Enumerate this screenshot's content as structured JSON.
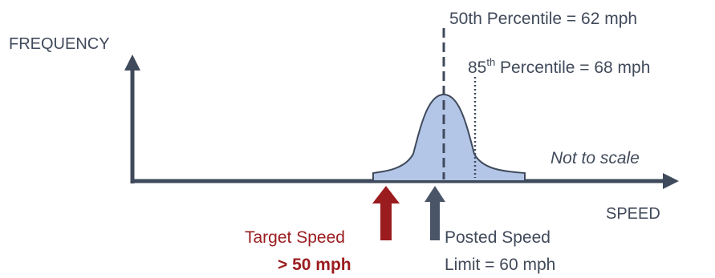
{
  "labels": {
    "frequency": "FREQUENCY",
    "speed": "SPEED",
    "p50": "50th Percentile = 62 mph",
    "p85_prefix": "85",
    "p85_sup": "th",
    "p85_suffix": " Percentile = 68 mph",
    "not_to_scale": "Not to scale",
    "target_line1": "Target Speed",
    "target_line2": "> 50 mph",
    "posted_line1": "Posted Speed",
    "posted_line2": "Limit = 60 mph"
  },
  "colors": {
    "axis": "#3f4a5c",
    "curve_fill": "#b4c6e7",
    "curve_stroke": "#3f4a5c",
    "target_arrow": "#9b1c1f",
    "posted_arrow": "#4a5568",
    "text": "#404a5a",
    "target_text": "#9b1c1f"
  },
  "icons": {
    "target_arrow": "up-arrow-icon",
    "posted_arrow": "up-arrow-icon"
  }
}
